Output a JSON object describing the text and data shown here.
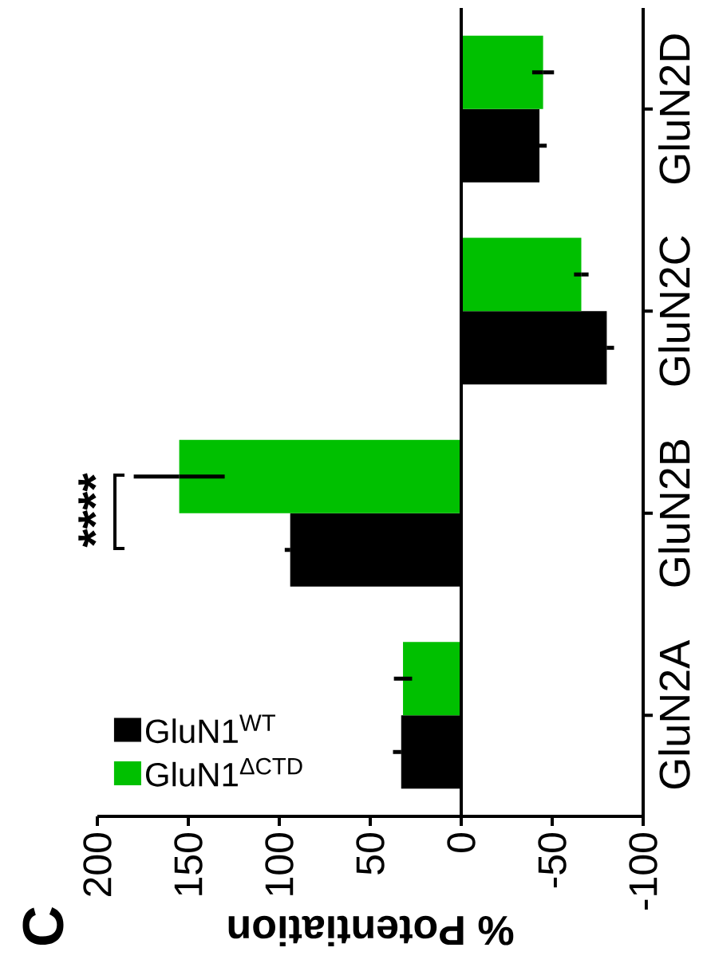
{
  "chart_data": {
    "type": "bar",
    "orientation": "horizontal",
    "title": "C",
    "xlabel": "% Potentiation",
    "categories": [
      "GluN2D",
      "GluN2C",
      "GluN2B",
      "GluN2A"
    ],
    "series": [
      {
        "name": "GluN1$^{WT}$",
        "color": "#000000",
        "values": [
          -43,
          -80,
          94,
          33
        ],
        "errors": [
          4,
          4,
          3,
          4.5
        ]
      },
      {
        "name": "GluN1$^{ΔCTD}$",
        "color": "#00c000",
        "values": [
          -45,
          -66,
          155,
          32
        ],
        "errors": [
          6,
          4,
          25,
          5
        ]
      }
    ],
    "xlim": [
      200,
      -100
    ],
    "xticks": [
      200,
      150,
      100,
      50,
      0,
      -50,
      -100
    ],
    "ref_lines": [
      {
        "axis": "x",
        "value": 0
      }
    ],
    "annotations": [
      "****"
    ],
    "legend": "bottom left",
    "grid": false
  }
}
